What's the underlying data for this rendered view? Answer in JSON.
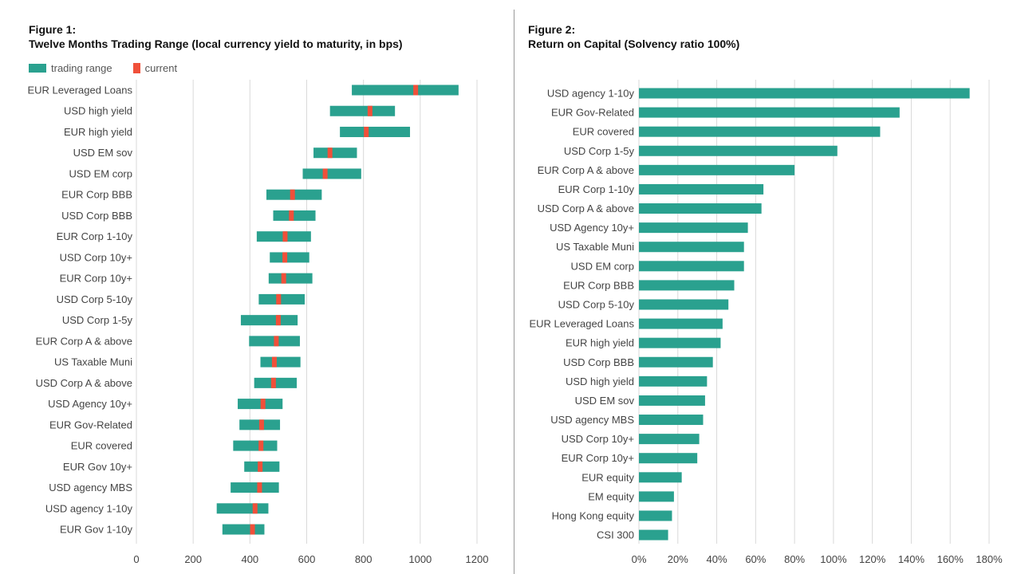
{
  "colors": {
    "range": "#2aa18f",
    "current": "#f0503a",
    "grid": "#d9d9d9"
  },
  "chart_data": [
    {
      "type": "bar",
      "subtype": "floating-range",
      "figure_label": "Figure 1:",
      "title": "Twelve Months Trading Range (local currency yield to maturity, in bps)",
      "legend": {
        "range": "trading range",
        "current": "current",
        "placement": "top-left"
      },
      "xlim": [
        0,
        1200
      ],
      "xticks": [
        "0",
        "200",
        "400",
        "600",
        "800",
        "1000",
        "1200"
      ],
      "grid": true,
      "categories": [
        "EUR Leveraged Loans",
        "USD high yield",
        "EUR high yield",
        "USD EM sov",
        "USD EM corp",
        "EUR Corp BBB",
        "USD Corp BBB",
        "EUR Corp 1-10y",
        "USD Corp 10y+",
        "EUR Corp 10y+",
        "USD Corp 5-10y",
        "USD Corp 1-5y",
        "EUR Corp A & above",
        "US Taxable Muni",
        "USD Corp A & above",
        "USD Agency 10y+",
        "EUR Gov-Related",
        "EUR covered",
        "EUR Gov 10y+",
        "USD agency MBS",
        "USD agency 1-10y",
        "EUR Gov 1-10y"
      ],
      "low": [
        759,
        682,
        717,
        624,
        586,
        458,
        482,
        424,
        470,
        466,
        431,
        368,
        397,
        437,
        415,
        357,
        363,
        341,
        380,
        332,
        283,
        303
      ],
      "high": [
        1135,
        911,
        964,
        777,
        792,
        653,
        631,
        615,
        609,
        620,
        593,
        568,
        576,
        578,
        565,
        515,
        506,
        496,
        504,
        502,
        465,
        451
      ],
      "current": [
        984,
        823,
        810,
        682,
        665,
        550,
        546,
        524,
        523,
        519,
        501,
        500,
        493,
        486,
        483,
        446,
        441,
        439,
        436,
        434,
        418,
        409
      ]
    },
    {
      "type": "bar",
      "orientation": "horizontal",
      "figure_label": "Figure 2:",
      "title": "Return on Capital (Solvency ratio 100%)",
      "xlim": [
        0,
        180
      ],
      "xticks": [
        "0%",
        "20%",
        "40%",
        "60%",
        "80%",
        "100%",
        "120%",
        "140%",
        "160%",
        "180%"
      ],
      "grid": true,
      "categories": [
        "USD agency 1-10y",
        "EUR Gov-Related",
        "EUR covered",
        "USD Corp 1-5y",
        "EUR Corp A & above",
        "EUR Corp 1-10y",
        "USD Corp A & above",
        "USD Agency 10y+",
        "US Taxable Muni",
        "USD EM corp",
        "EUR Corp BBB",
        "USD Corp 5-10y",
        "EUR Leveraged Loans",
        "EUR high yield",
        "USD Corp BBB",
        "USD high yield",
        "USD EM sov",
        "USD agency MBS",
        "USD Corp 10y+",
        "EUR Corp 10y+",
        "EUR equity",
        "EM equity",
        "Hong Kong equity",
        "CSI 300"
      ],
      "values": [
        170,
        134,
        124,
        102,
        80,
        64,
        63,
        56,
        54,
        54,
        49,
        46,
        43,
        42,
        38,
        35,
        34,
        33,
        31,
        30,
        22,
        18,
        17,
        15
      ]
    }
  ]
}
